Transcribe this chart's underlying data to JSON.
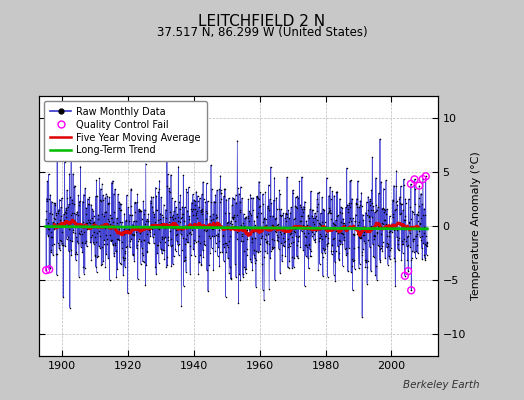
{
  "title": "LEITCHFIELD 2 N",
  "subtitle": "37.517 N, 86.299 W (United States)",
  "ylabel": "Temperature Anomaly (°C)",
  "credit": "Berkeley Earth",
  "ylim": [
    -12,
    12
  ],
  "yticks": [
    -10,
    -5,
    0,
    5,
    10
  ],
  "xlim": [
    1893,
    2014
  ],
  "xticks": [
    1900,
    1920,
    1940,
    1960,
    1980,
    2000
  ],
  "bg_color": "#c8c8c8",
  "plot_bg_color": "#ffffff",
  "grid_color": "#aaaaaa",
  "raw_line_color": "#3333cc",
  "raw_dot_color": "#000000",
  "ma_color": "#dd0000",
  "trend_color": "#00bb00",
  "qc_color": "#ff00ff",
  "seed": 17,
  "n_years": 116,
  "start_year": 1895
}
